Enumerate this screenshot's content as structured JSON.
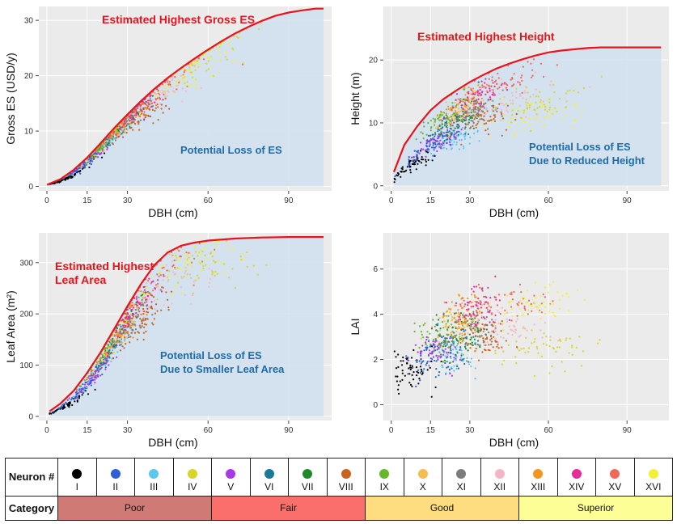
{
  "chart_data": [
    {
      "id": "es",
      "type": "scatter",
      "xlabel": "DBH (cm)",
      "ylabel": "Gross ES (USD/y)",
      "xlim": [
        -3,
        106
      ],
      "ylim": [
        -0.8,
        32.5
      ],
      "xticks": [
        0,
        15,
        30,
        60,
        90
      ],
      "yticks": [
        0,
        10,
        20,
        30
      ],
      "envelope": [
        [
          0,
          0.3
        ],
        [
          5,
          1.3
        ],
        [
          10,
          3.0
        ],
        [
          15,
          5.2
        ],
        [
          20,
          7.8
        ],
        [
          25,
          10.5
        ],
        [
          30,
          13.0
        ],
        [
          35,
          15.4
        ],
        [
          40,
          17.6
        ],
        [
          45,
          19.6
        ],
        [
          50,
          21.4
        ],
        [
          55,
          23.1
        ],
        [
          60,
          24.7
        ],
        [
          65,
          26.2
        ],
        [
          70,
          27.6
        ],
        [
          75,
          28.8
        ],
        [
          80,
          29.9
        ],
        [
          85,
          30.8
        ],
        [
          90,
          31.4
        ],
        [
          95,
          31.8
        ],
        [
          100,
          32.1
        ],
        [
          103,
          32.1
        ]
      ],
      "annotations": {
        "top": "Estimated Highest Gross ES",
        "loss": [
          "Potential Loss of ES"
        ]
      }
    },
    {
      "id": "height",
      "type": "scatter",
      "xlabel": "DBH (cm)",
      "ylabel": "Height (m)",
      "xlim": [
        -3,
        106
      ],
      "ylim": [
        -0.8,
        28.5
      ],
      "xticks": [
        0,
        15,
        30,
        60,
        90
      ],
      "yticks": [
        0,
        10,
        20
      ],
      "envelope": [
        [
          1,
          2.2
        ],
        [
          5,
          6.5
        ],
        [
          10,
          9.5
        ],
        [
          15,
          12.0
        ],
        [
          20,
          13.8
        ],
        [
          25,
          15.2
        ],
        [
          30,
          16.5
        ],
        [
          35,
          17.6
        ],
        [
          40,
          18.6
        ],
        [
          45,
          19.4
        ],
        [
          50,
          20.1
        ],
        [
          55,
          20.7
        ],
        [
          60,
          21.2
        ],
        [
          65,
          21.5
        ],
        [
          70,
          21.7
        ],
        [
          75,
          21.9
        ],
        [
          80,
          22.0
        ],
        [
          85,
          22.0
        ],
        [
          103,
          22.0
        ]
      ],
      "annotations": {
        "top": "Estimated Highest Height",
        "loss": [
          "Potential Loss of ES",
          "Due to Reduced Height"
        ]
      }
    },
    {
      "id": "leaf",
      "type": "scatter",
      "xlabel": "DBH (cm)",
      "ylabel": "Leaf Area (m²)",
      "xlim": [
        -3,
        106
      ],
      "ylim": [
        -8,
        358
      ],
      "xticks": [
        0,
        15,
        30,
        60,
        90
      ],
      "yticks": [
        0,
        100,
        200,
        300
      ],
      "envelope": [
        [
          1,
          10
        ],
        [
          5,
          25
        ],
        [
          10,
          50
        ],
        [
          15,
          85
        ],
        [
          20,
          125
        ],
        [
          25,
          170
        ],
        [
          30,
          215
        ],
        [
          35,
          258
        ],
        [
          40,
          295
        ],
        [
          45,
          320
        ],
        [
          50,
          333
        ],
        [
          55,
          339
        ],
        [
          60,
          343
        ],
        [
          70,
          347
        ],
        [
          80,
          349
        ],
        [
          90,
          350
        ],
        [
          103,
          350
        ]
      ],
      "annotations": {
        "top": [
          "Estimated Highest",
          "Leaf Area"
        ],
        "loss": [
          "Potential Loss of ES",
          "Due to Smaller Leaf Area"
        ]
      }
    },
    {
      "id": "lai",
      "type": "scatter",
      "xlabel": "DBH (cm)",
      "ylabel": "LAI",
      "xlim": [
        -3,
        106
      ],
      "ylim": [
        -0.7,
        7.6
      ],
      "xticks": [
        0,
        15,
        30,
        60,
        90
      ],
      "yticks": [
        0,
        2,
        4,
        6
      ],
      "envelope": [],
      "annotations": {}
    }
  ],
  "neurons": [
    {
      "label": "I",
      "color": "#000000",
      "x": 8,
      "es": 0.7,
      "ht": 0.42,
      "la": 0.58,
      "lai": 1.5
    },
    {
      "label": "II",
      "color": "#2E5FD8",
      "x": 14,
      "es": 0.85,
      "ht": 0.55,
      "la": 0.72,
      "lai": 2.0
    },
    {
      "label": "III",
      "color": "#5CC8EE",
      "x": 24,
      "es": 0.9,
      "ht": 0.5,
      "la": 0.8,
      "lai": 2.2
    },
    {
      "label": "IV",
      "color": "#D6D62A",
      "x": 58,
      "es": 0.96,
      "ht": 0.62,
      "la": 0.86,
      "lai": 2.6
    },
    {
      "label": "V",
      "color": "#A838E8",
      "x": 18,
      "es": 0.88,
      "ht": 0.55,
      "la": 0.76,
      "lai": 2.4
    },
    {
      "label": "VI",
      "color": "#1A7A9A",
      "x": 23,
      "es": 0.9,
      "ht": 0.62,
      "la": 0.84,
      "lai": 2.8
    },
    {
      "label": "VII",
      "color": "#1E8A2A",
      "x": 28,
      "es": 0.92,
      "ht": 0.68,
      "la": 0.9,
      "lai": 3.2
    },
    {
      "label": "VIII",
      "color": "#C8621C",
      "x": 36,
      "es": 0.82,
      "ht": 0.6,
      "la": 0.7,
      "lai": 2.9
    },
    {
      "label": "IX",
      "color": "#66B82A",
      "x": 20,
      "es": 0.93,
      "ht": 0.8,
      "la": 0.95,
      "lai": 3.0
    },
    {
      "label": "X",
      "color": "#F5BC50",
      "x": 26,
      "es": 0.93,
      "ht": 0.76,
      "la": 0.85,
      "lai": 3.6
    },
    {
      "label": "XI",
      "color": "#7C7C7C",
      "x": 32,
      "es": 0.92,
      "ht": 0.7,
      "la": 0.8,
      "lai": 3.6
    },
    {
      "label": "XII",
      "color": "#F4B6C6",
      "x": 42,
      "es": 0.88,
      "ht": 0.7,
      "la": 0.82,
      "lai": 3.4
    },
    {
      "label": "XIII",
      "color": "#F4961C",
      "x": 28,
      "es": 0.93,
      "ht": 0.82,
      "la": 0.86,
      "lai": 4.0
    },
    {
      "label": "XIV",
      "color": "#E82A9A",
      "x": 33,
      "es": 0.94,
      "ht": 0.82,
      "la": 0.88,
      "lai": 4.3
    },
    {
      "label": "XV",
      "color": "#F06858",
      "x": 42,
      "es": 0.95,
      "ht": 0.86,
      "la": 0.92,
      "lai": 4.5
    },
    {
      "label": "XVI",
      "color": "#F4F038",
      "x": 55,
      "es": 0.92,
      "ht": 0.55,
      "la": 0.9,
      "lai": 4.5
    }
  ],
  "legend": {
    "neuron_header": "Neuron #",
    "category_header": "Category",
    "categories": [
      {
        "label": "Poor",
        "color": "#D07A76"
      },
      {
        "label": "Fair",
        "color": "#FA6E6C"
      },
      {
        "label": "Good",
        "color": "#FEDD80"
      },
      {
        "label": "Superior",
        "color": "#FEFE96"
      }
    ]
  },
  "colors": {
    "panel_bg": "#EBEBEB",
    "fill": "#D2E1EF",
    "curve": "#E8131B",
    "top_text": "#E8131B",
    "loss_text": "#1F6CA7"
  }
}
